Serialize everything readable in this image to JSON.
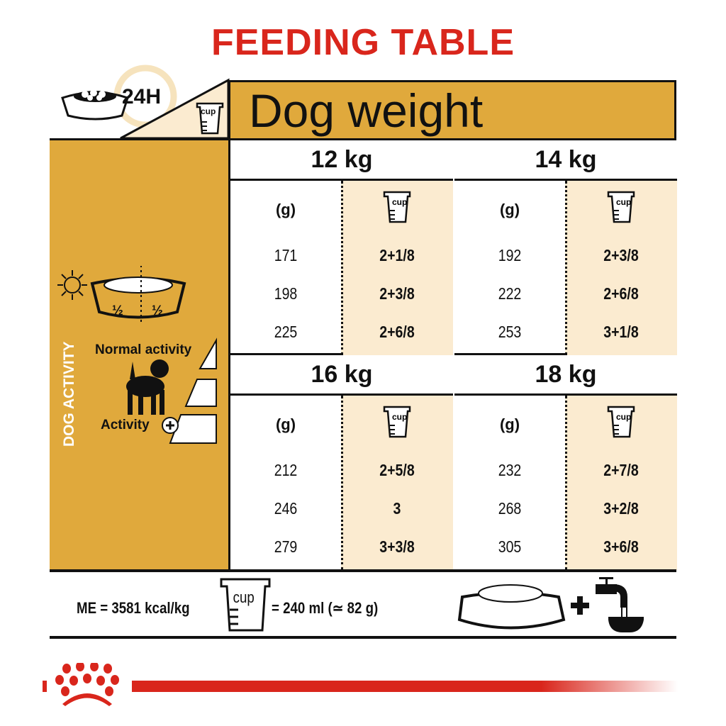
{
  "title": "FEEDING TABLE",
  "header": {
    "period": "24H",
    "cup_label": "cup",
    "dog_weight": "Dog weight"
  },
  "activity": {
    "section_label": "DOG ACTIVITY",
    "half_left": "½",
    "half_right": "½",
    "normal": "Normal activity",
    "high": "Activity"
  },
  "table": {
    "grams_label": "(g)",
    "cup_label": "cup",
    "cells": [
      {
        "weight": "12 kg",
        "rows": [
          {
            "g": "171",
            "cup": "2+1/8"
          },
          {
            "g": "198",
            "cup": "2+3/8"
          },
          {
            "g": "225",
            "cup": "2+6/8"
          }
        ]
      },
      {
        "weight": "14 kg",
        "rows": [
          {
            "g": "192",
            "cup": "2+3/8"
          },
          {
            "g": "222",
            "cup": "2+6/8"
          },
          {
            "g": "253",
            "cup": "3+1/8"
          }
        ]
      },
      {
        "weight": "16 kg",
        "rows": [
          {
            "g": "212",
            "cup": "2+5/8"
          },
          {
            "g": "246",
            "cup": "3"
          },
          {
            "g": "279",
            "cup": "3+3/8"
          }
        ]
      },
      {
        "weight": "18 kg",
        "rows": [
          {
            "g": "232",
            "cup": "2+7/8"
          },
          {
            "g": "268",
            "cup": "3+2/8"
          },
          {
            "g": "305",
            "cup": "3+6/8"
          }
        ]
      }
    ]
  },
  "footer": {
    "energy": "ME = 3581 kcal/kg",
    "cup_label": "cup",
    "cup_equiv": "= 240 ml (≃ 82 g)"
  },
  "colors": {
    "brand_red": "#d9261c",
    "gold": "#e0a93c",
    "beige": "#fbebd0"
  }
}
